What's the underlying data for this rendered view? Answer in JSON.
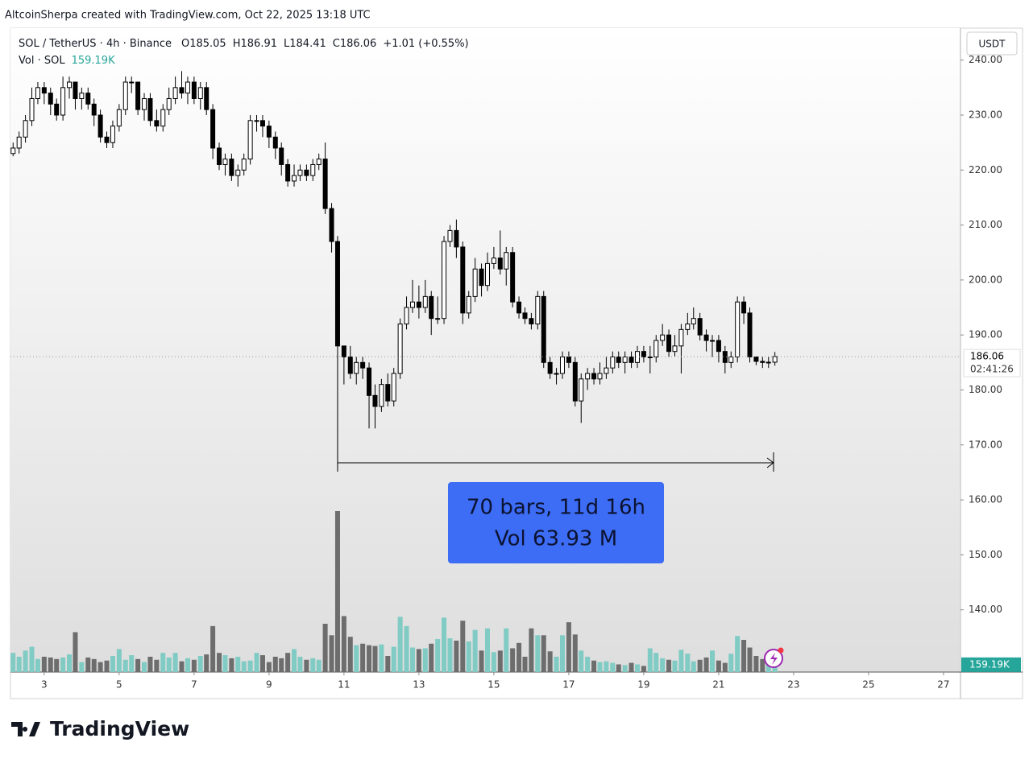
{
  "header": {
    "title": "AltcoinSherpa created with TradingView.com, Oct 22, 2025 13:18 UTC"
  },
  "legend": {
    "symbol": "SOL / TetherUS · 4h · Binance",
    "items": [
      {
        "key": "O",
        "value": "185.05"
      },
      {
        "key": "H",
        "value": "186.91"
      },
      {
        "key": "L",
        "value": "184.41"
      },
      {
        "key": "C",
        "value": "186.06"
      }
    ],
    "change": "+1.01 (+0.55%)",
    "volume_name": "Vol · SOL",
    "volume_value": "159.19K"
  },
  "chart_data": {
    "type": "candlestick",
    "currency": "USDT",
    "last_price_label": "186.06",
    "countdown": "02:41:26",
    "volume_label": "159.19K",
    "up_color": "#ffffff",
    "down_color": "#000000",
    "wick_color": "#000000",
    "volume_up_color": "#80cbc4",
    "volume_down_color": "#6d6d6d",
    "xlim": [
      2.1,
      27.41
    ],
    "xticks": [
      3,
      5,
      7,
      9,
      11,
      13,
      15,
      17,
      19,
      21,
      23,
      25,
      27
    ],
    "ylim": [
      128.68,
      245.81
    ],
    "yticks": [
      {
        "value": 140,
        "label": "140.00"
      },
      {
        "value": 150,
        "label": "150.00"
      },
      {
        "value": 160,
        "label": "160.00"
      },
      {
        "value": 170,
        "label": "170.00"
      },
      {
        "value": 180,
        "label": "180.00"
      },
      {
        "value": 190,
        "label": "190.00"
      },
      {
        "value": 200,
        "label": "200.00"
      },
      {
        "value": 210,
        "label": "210.00"
      },
      {
        "value": 220,
        "label": "220.00"
      },
      {
        "value": 230,
        "label": "230.00"
      },
      {
        "value": 240,
        "label": "240.00"
      }
    ],
    "volume_lim": [
      0,
      4200
    ],
    "x": [
      2.17,
      2.33,
      2.5,
      2.67,
      2.83,
      3,
      3.17,
      3.33,
      3.5,
      3.67,
      3.83,
      4,
      4.17,
      4.33,
      4.5,
      4.67,
      4.83,
      5,
      5.17,
      5.33,
      5.5,
      5.67,
      5.83,
      6,
      6.17,
      6.33,
      6.5,
      6.67,
      6.83,
      7,
      7.17,
      7.33,
      7.5,
      7.67,
      7.83,
      8,
      8.17,
      8.33,
      8.5,
      8.67,
      8.83,
      9,
      9.17,
      9.33,
      9.5,
      9.67,
      9.83,
      10,
      10.17,
      10.33,
      10.5,
      10.67,
      10.83,
      11,
      11.17,
      11.33,
      11.5,
      11.67,
      11.83,
      12,
      12.17,
      12.33,
      12.5,
      12.67,
      12.83,
      13,
      13.17,
      13.33,
      13.5,
      13.67,
      13.83,
      14,
      14.17,
      14.33,
      14.5,
      14.67,
      14.83,
      15,
      15.17,
      15.33,
      15.5,
      15.67,
      15.83,
      16,
      16.17,
      16.33,
      16.5,
      16.67,
      16.83,
      17,
      17.17,
      17.33,
      17.5,
      17.67,
      17.83,
      18,
      18.17,
      18.33,
      18.5,
      18.67,
      18.83,
      19,
      19.17,
      19.33,
      19.5,
      19.67,
      19.83,
      20,
      20.17,
      20.33,
      20.5,
      20.67,
      20.83,
      21,
      21.17,
      21.33,
      21.5,
      21.67,
      21.83,
      22,
      22.17,
      22.33,
      22.5
    ],
    "open": [
      223,
      224,
      226,
      229,
      233,
      235,
      234,
      232,
      230,
      235,
      236,
      233,
      234,
      232,
      230,
      226,
      225,
      228,
      231,
      236,
      236,
      231,
      233,
      229,
      228,
      231,
      233,
      235,
      234,
      236,
      233,
      235,
      231,
      224,
      221,
      222,
      219,
      220,
      222,
      229,
      229,
      228,
      226,
      224,
      221,
      218,
      219,
      220,
      219,
      221,
      222,
      213,
      207,
      188,
      186,
      183,
      185,
      184,
      179,
      177,
      181,
      178,
      183,
      192,
      195,
      196,
      195,
      197,
      193,
      193,
      207,
      209,
      206,
      194,
      197,
      202,
      199,
      203,
      204,
      202,
      205,
      196,
      194,
      193,
      192,
      197,
      185,
      183,
      183,
      186,
      185,
      178,
      182,
      183,
      182,
      183,
      184,
      186,
      185,
      186,
      185,
      187,
      186,
      186,
      189,
      190,
      187,
      188,
      191,
      192,
      193,
      190,
      189,
      189,
      187,
      185,
      186,
      196,
      194,
      186,
      185.2,
      185,
      185.05
    ],
    "high": [
      225,
      227,
      230,
      235,
      236,
      236,
      235,
      233,
      237,
      237,
      236,
      235,
      235,
      233,
      231,
      227,
      229,
      232,
      237,
      237,
      236,
      234,
      234,
      231,
      232,
      235,
      237,
      238,
      237,
      237,
      236,
      236,
      232,
      225,
      223,
      223,
      221,
      223,
      230,
      230,
      230,
      229,
      227,
      225,
      222,
      221,
      221,
      221,
      222,
      223,
      225,
      214,
      208,
      187,
      188,
      186,
      186,
      185,
      181,
      182,
      183,
      184,
      193,
      197,
      200,
      199,
      200,
      198,
      197,
      208,
      210,
      211,
      207,
      198,
      204,
      203,
      205,
      206,
      209,
      206,
      206,
      197,
      195,
      194,
      198,
      198,
      186,
      184,
      187,
      187,
      186,
      183,
      184,
      184,
      185,
      186,
      187,
      187,
      187,
      187,
      188,
      188,
      188,
      190,
      192,
      191,
      190,
      192,
      194,
      195,
      194,
      191,
      190,
      190,
      188,
      187,
      197,
      197,
      195,
      186,
      186,
      186,
      186.91
    ],
    "low": [
      222.5,
      223,
      225,
      228,
      232,
      232,
      230,
      229,
      229,
      233,
      231,
      231,
      231,
      228,
      225,
      224,
      224,
      227,
      230,
      234,
      230,
      229,
      228,
      227,
      227,
      230,
      232,
      233,
      232,
      232,
      231,
      230,
      222,
      220,
      219,
      218,
      217,
      219,
      221,
      227,
      226,
      224,
      222,
      219,
      217,
      217,
      218,
      218,
      218,
      220,
      212,
      205,
      166,
      181,
      182,
      181,
      182,
      173,
      173,
      176,
      177,
      177,
      182,
      191,
      194,
      193,
      194,
      190,
      192,
      192,
      206,
      204,
      192,
      193,
      196,
      197,
      198,
      202,
      201,
      199,
      195,
      193,
      192,
      191,
      191,
      184,
      182,
      181,
      182,
      184,
      177,
      174,
      180,
      181,
      181,
      182,
      183,
      184,
      183,
      184,
      184,
      185,
      183,
      185,
      188,
      186,
      186,
      183,
      190,
      191,
      189,
      187,
      186,
      185,
      183,
      184,
      185,
      192,
      185,
      184.5,
      184,
      184,
      184.41
    ],
    "close": [
      224,
      226,
      229,
      233,
      235,
      234,
      232,
      230,
      235,
      236,
      233,
      234,
      232,
      230,
      226,
      225,
      228,
      231,
      236,
      236,
      231,
      233,
      229,
      228,
      231,
      233,
      235,
      234,
      236,
      233,
      235,
      231,
      224,
      221,
      222,
      219,
      220,
      222,
      229,
      229,
      228,
      226,
      224,
      221,
      218,
      219,
      220,
      219,
      221,
      222,
      213,
      207,
      188,
      186,
      183,
      185,
      184,
      179,
      177,
      181,
      178,
      183,
      192,
      195,
      196,
      195,
      197,
      193,
      193,
      207,
      209,
      206,
      194,
      197,
      202,
      199,
      203,
      204,
      202,
      205,
      196,
      194,
      193,
      192,
      197,
      185,
      183,
      183,
      186,
      185,
      178,
      182,
      183,
      182,
      183,
      184,
      186,
      185,
      186,
      185,
      187,
      186,
      186,
      189,
      190,
      187,
      188,
      191,
      192,
      193,
      190,
      189,
      189,
      187,
      185,
      186,
      196,
      194,
      186,
      185.2,
      185,
      185.05,
      186.06
    ],
    "volume": [
      250,
      200,
      280,
      330,
      170,
      200,
      190,
      170,
      190,
      230,
      520,
      130,
      190,
      170,
      130,
      150,
      210,
      300,
      160,
      220,
      170,
      130,
      200,
      160,
      250,
      190,
      250,
      140,
      180,
      160,
      210,
      230,
      600,
      250,
      220,
      180,
      200,
      140,
      150,
      250,
      220,
      130,
      200,
      180,
      250,
      300,
      200,
      160,
      180,
      160,
      630,
      480,
      2100,
      730,
      460,
      350,
      370,
      350,
      340,
      360,
      210,
      330,
      720,
      600,
      320,
      300,
      310,
      370,
      430,
      710,
      440,
      410,
      670,
      400,
      550,
      280,
      570,
      260,
      280,
      570,
      310,
      380,
      200,
      570,
      480,
      480,
      270,
      200,
      480,
      650,
      490,
      280,
      200,
      150,
      130,
      140,
      120,
      100,
      90,
      120,
      100,
      80,
      310,
      250,
      180,
      160,
      150,
      290,
      240,
      140,
      160,
      190,
      280,
      150,
      120,
      240,
      470,
      420,
      320,
      210,
      170,
      160,
      159.19
    ],
    "annotation": {
      "line1": "70 bars, 11d 16h",
      "line2": "Vol 63.93 M"
    }
  },
  "footer": {
    "brand": "TradingView"
  }
}
